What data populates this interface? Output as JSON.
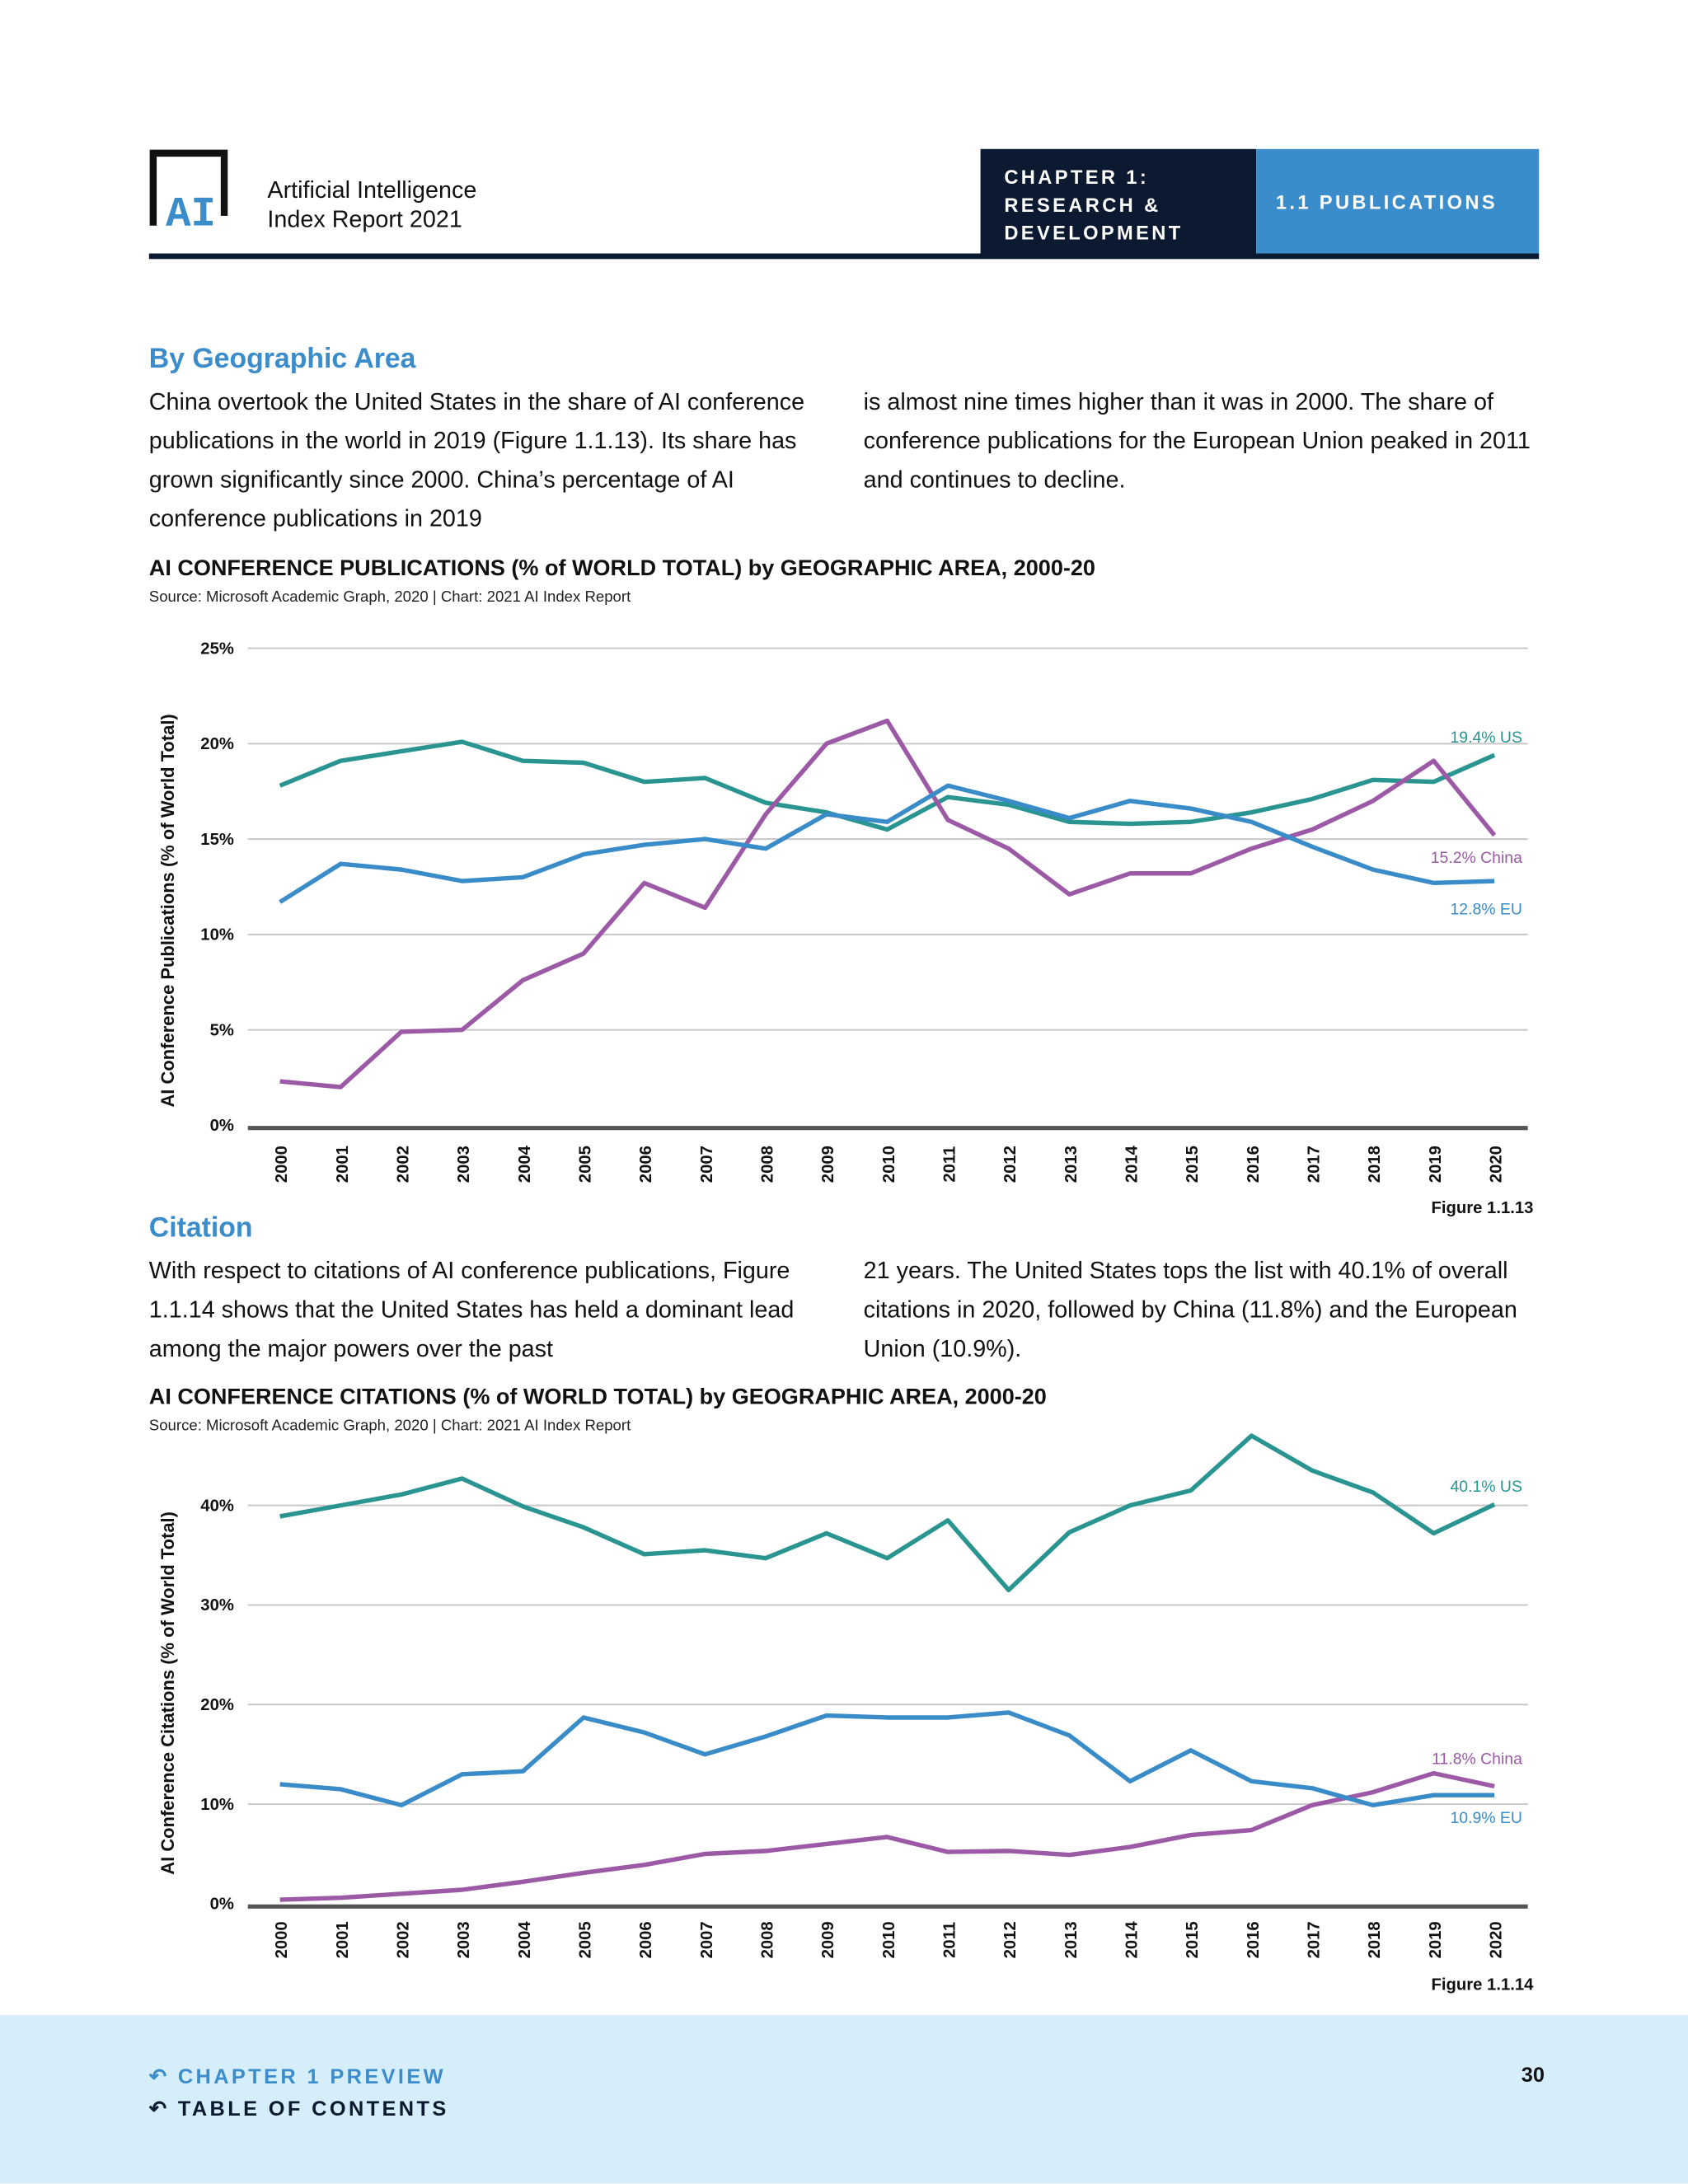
{
  "header": {
    "logo_text": "AI",
    "brand_line1": "Artificial Intelligence",
    "brand_line2": "Index Report 2021",
    "chapter_lines": [
      "CHAPTER 1:",
      "RESEARCH &",
      "DEVELOPMENT"
    ],
    "section": "1.1 PUBLICATIONS"
  },
  "sections": [
    {
      "heading": "By Geographic Area",
      "col1": "China overtook the United States in the share of AI conference publications in the world in 2019 (Figure 1.1.13). Its share has grown significantly since 2000. China’s percentage of AI conference publications in 2019",
      "col2": "is almost nine times higher than it was in 2000. The share of conference publications for the European Union peaked in 2011 and continues to decline."
    },
    {
      "heading": "Citation",
      "col1": "With respect to citations of AI conference publications, Figure 1.1.14 shows that the United States has held a dominant lead among the major powers over the past",
      "col2": "21 years. The United States tops the list with 40.1% of overall citations in 2020, followed by China (11.8%) and the European Union (10.9%)."
    }
  ],
  "colors": {
    "US": "#2a9590",
    "EU": "#3a8cc8",
    "China": "#9b59a6",
    "header_dark": "#0b1a30",
    "accent": "#3a8dca"
  },
  "chart_data": [
    {
      "type": "line",
      "title": "AI CONFERENCE PUBLICATIONS (% of WORLD TOTAL) by GEOGRAPHIC AREA, 2000-20",
      "source": "Source: Microsoft Academic Graph, 2020 | Chart: 2021 AI Index Report",
      "ylabel": "AI Conference Publications (% of World Total)",
      "figure": "Figure 1.1.13",
      "ylim": [
        0,
        25
      ],
      "yticks": [
        "0%",
        "5%",
        "10%",
        "15%",
        "20%",
        "25%"
      ],
      "grid": true,
      "x": [
        "2000",
        "2001",
        "2002",
        "2003",
        "2004",
        "2005",
        "2006",
        "2007",
        "2008",
        "2009",
        "2010",
        "2011",
        "2012",
        "2013",
        "2014",
        "2015",
        "2016",
        "2017",
        "2018",
        "2019",
        "2020"
      ],
      "series": [
        {
          "name": "US",
          "end_label": "19.4% US",
          "values": [
            17.8,
            19.1,
            19.6,
            20.1,
            19.1,
            19.0,
            18.0,
            18.2,
            16.9,
            16.4,
            15.5,
            17.2,
            16.8,
            15.9,
            15.8,
            15.9,
            16.4,
            17.1,
            18.1,
            18.0,
            19.4
          ]
        },
        {
          "name": "China",
          "end_label": "15.2% China",
          "values": [
            2.3,
            2.0,
            4.9,
            5.0,
            7.6,
            9.0,
            12.7,
            11.4,
            16.3,
            20.0,
            21.2,
            16.0,
            14.5,
            12.1,
            13.2,
            13.2,
            14.5,
            15.5,
            17.0,
            19.1,
            15.2
          ]
        },
        {
          "name": "EU",
          "end_label": "12.8% EU",
          "values": [
            11.7,
            13.7,
            13.4,
            12.8,
            13.0,
            14.2,
            14.7,
            15.0,
            14.5,
            16.3,
            15.9,
            17.8,
            17.0,
            16.1,
            17.0,
            16.6,
            15.9,
            14.6,
            13.4,
            12.7,
            12.8
          ]
        }
      ]
    },
    {
      "type": "line",
      "title": "AI CONFERENCE CITATIONS (% of WORLD TOTAL) by GEOGRAPHIC AREA, 2000-20",
      "source": "Source: Microsoft Academic Graph, 2020 | Chart: 2021 AI Index Report",
      "ylabel": "AI Conference Citations (% of World Total)",
      "figure": "Figure 1.1.14",
      "ylim": [
        0,
        47
      ],
      "yticks": [
        "0%",
        "10%",
        "20%",
        "30%",
        "40%"
      ],
      "grid": true,
      "x": [
        "2000",
        "2001",
        "2002",
        "2003",
        "2004",
        "2005",
        "2006",
        "2007",
        "2008",
        "2009",
        "2010",
        "2011",
        "2012",
        "2013",
        "2014",
        "2015",
        "2016",
        "2017",
        "2018",
        "2019",
        "2020"
      ],
      "series": [
        {
          "name": "US",
          "end_label": "40.1% US",
          "values": [
            38.9,
            40.0,
            41.1,
            42.7,
            39.9,
            37.8,
            35.1,
            35.5,
            34.7,
            37.2,
            34.7,
            38.5,
            31.5,
            37.3,
            40.0,
            41.5,
            47.0,
            43.5,
            41.3,
            37.2,
            40.1
          ]
        },
        {
          "name": "China",
          "end_label": "11.8% China",
          "values": [
            0.4,
            0.6,
            1.0,
            1.4,
            2.2,
            3.1,
            3.9,
            5.0,
            5.3,
            6.0,
            6.7,
            5.2,
            5.3,
            4.9,
            5.7,
            6.9,
            7.4,
            9.9,
            11.2,
            13.1,
            11.8
          ]
        },
        {
          "name": "EU",
          "end_label": "10.9% EU",
          "values": [
            12.0,
            11.5,
            9.9,
            13.0,
            13.3,
            18.7,
            17.2,
            15.0,
            16.8,
            18.9,
            18.7,
            18.7,
            19.2,
            16.9,
            12.3,
            15.4,
            12.3,
            11.6,
            9.9,
            10.9,
            10.9
          ]
        }
      ]
    }
  ],
  "footer": {
    "chapter_preview": "CHAPTER 1 PREVIEW",
    "toc": "TABLE OF CONTENTS",
    "page_number": "30",
    "back_icon": "return-arrow-icon"
  }
}
